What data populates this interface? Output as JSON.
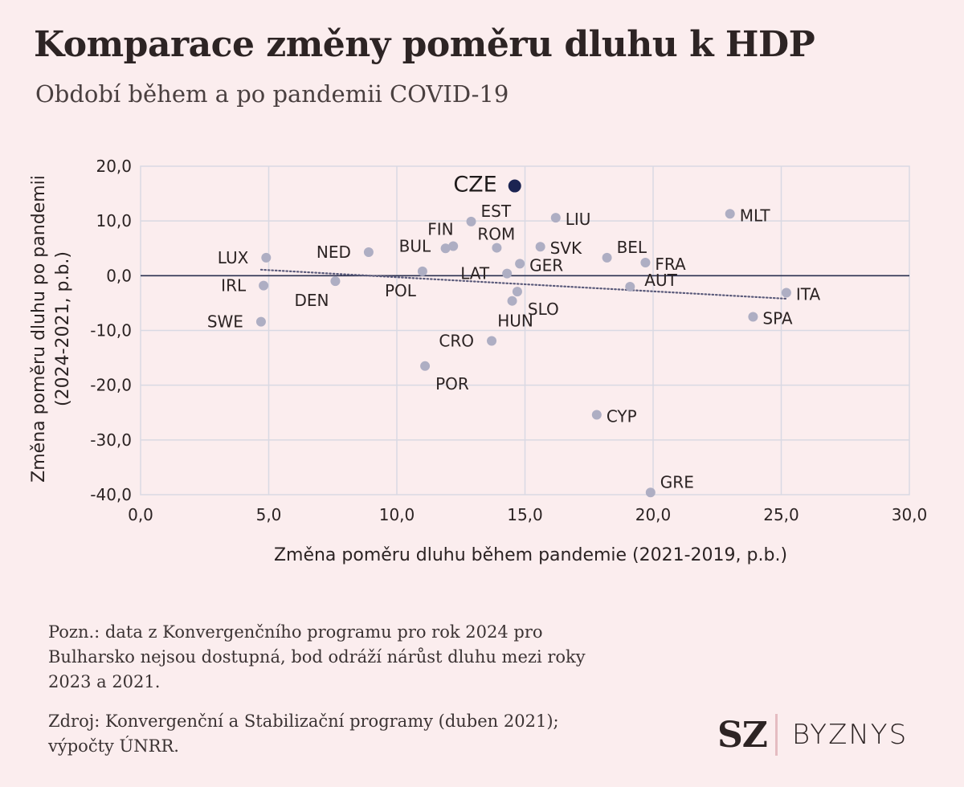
{
  "header": {
    "title": "Komparace změny poměru dluhu k HDP",
    "subtitle": "Období během a po pandemii COVID-19"
  },
  "chart_data": {
    "type": "scatter",
    "xlabel": "Změna poměru dluhu během pandemie (2021-2019, p.b.)",
    "ylabel_lines": [
      "Změna poměru dluhu po pandemii",
      "(2024-2021, p.b.)"
    ],
    "xlim": [
      0,
      30
    ],
    "ylim": [
      -40,
      20
    ],
    "x_ticks": [
      "0,0",
      "5,0",
      "10,0",
      "15,0",
      "20,0",
      "25,0",
      "30,0"
    ],
    "y_ticks": [
      "20,0",
      "10,0",
      "0,0",
      "-10,0",
      "-20,0",
      "-30,0",
      "-40,0"
    ],
    "grid": true,
    "points": [
      {
        "label": "CZE",
        "x": 14.6,
        "y": 16.4,
        "highlight": true,
        "label_pos": "left"
      },
      {
        "label": "EST",
        "x": 12.9,
        "y": 9.9,
        "label_pos": "above-right"
      },
      {
        "label": "FIN",
        "x": 11.9,
        "y": 5.0,
        "label_pos": "above-left"
      },
      {
        "label": "BUL",
        "x": 12.2,
        "y": 5.4,
        "label_pos": "left-far"
      },
      {
        "label": "ROM",
        "x": 13.9,
        "y": 5.1,
        "label_pos": "above-right-small"
      },
      {
        "label": "LIU",
        "x": 16.2,
        "y": 10.6,
        "label_pos": "right"
      },
      {
        "label": "MLT",
        "x": 23.0,
        "y": 11.3,
        "label_pos": "right"
      },
      {
        "label": "LUX",
        "x": 4.9,
        "y": 3.3,
        "label_pos": "left"
      },
      {
        "label": "NED",
        "x": 8.9,
        "y": 4.3,
        "label_pos": "left"
      },
      {
        "label": "SVK",
        "x": 15.6,
        "y": 5.3,
        "label_pos": "right"
      },
      {
        "label": "BEL",
        "x": 18.2,
        "y": 3.3,
        "label_pos": "above-right"
      },
      {
        "label": "FRA",
        "x": 19.7,
        "y": 2.4,
        "label_pos": "right"
      },
      {
        "label": "GER",
        "x": 14.8,
        "y": 2.2,
        "label_pos": "right"
      },
      {
        "label": "LAT",
        "x": 14.3,
        "y": 0.4,
        "label_pos": "left"
      },
      {
        "label": "POL",
        "x": 11.0,
        "y": 0.8,
        "label_pos": "below-left"
      },
      {
        "label": "IRL",
        "x": 4.8,
        "y": -1.8,
        "label_pos": "left"
      },
      {
        "label": "DEN",
        "x": 7.6,
        "y": -1.0,
        "label_pos": "below-left"
      },
      {
        "label": "AUT",
        "x": 19.1,
        "y": -2.0,
        "label_pos": "right-up"
      },
      {
        "label": "ITA",
        "x": 25.2,
        "y": -3.1,
        "label_pos": "right"
      },
      {
        "label": "SLO",
        "x": 14.7,
        "y": -2.9,
        "label_pos": "below-right"
      },
      {
        "label": "HUN",
        "x": 14.5,
        "y": -4.6,
        "label_pos": "below"
      },
      {
        "label": "SPA",
        "x": 23.9,
        "y": -7.5,
        "label_pos": "right"
      },
      {
        "label": "SWE",
        "x": 4.7,
        "y": -8.4,
        "label_pos": "left"
      },
      {
        "label": "CRO",
        "x": 13.7,
        "y": -11.9,
        "label_pos": "left"
      },
      {
        "label": "POR",
        "x": 11.1,
        "y": -16.5,
        "label_pos": "below-right"
      },
      {
        "label": "CYP",
        "x": 17.8,
        "y": -25.4,
        "label_pos": "right"
      },
      {
        "label": "GRE",
        "x": 19.9,
        "y": -39.6,
        "label_pos": "above-right"
      }
    ],
    "trendline": {
      "style": "dotted",
      "x": [
        4.7,
        25.2
      ],
      "y": [
        1.1,
        -4.2
      ]
    },
    "colors": {
      "point": "#aeaec3",
      "highlight": "#1b2452",
      "trend": "#5a5a7a",
      "grid": "#d9d9e3",
      "axis": "#2b3050"
    }
  },
  "footer": {
    "note": "Pozn.: data z Konvergenčního programu pro rok 2024 pro\nBulharsko nejsou dostupná, bod odráží nárůst dluhu mezi roky\n2023 a 2021.",
    "source": "Zdroj: Konvergenční a Stabilizační programy (duben 2021);\nvýpočty ÚNRR.",
    "logo_left": "SZ",
    "logo_right": "BYZNYS"
  }
}
